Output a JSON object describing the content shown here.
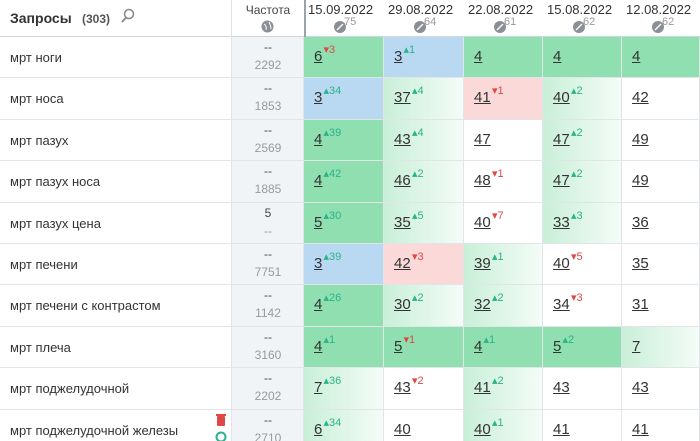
{
  "header": {
    "queries_label": "Запросы",
    "queries_count": "(303)",
    "frequency_label": "Частота",
    "dates": [
      {
        "date": "15.09.2022",
        "score": "75"
      },
      {
        "date": "29.08.2022",
        "score": "64"
      },
      {
        "date": "22.08.2022",
        "score": "61"
      },
      {
        "date": "15.08.2022",
        "score": "62"
      },
      {
        "date": "12.08.2022",
        "score": "62"
      }
    ]
  },
  "rows": [
    {
      "query": "мрт ноги",
      "freq": "--",
      "freq_total": "2292",
      "cells": [
        {
          "pos": "6",
          "change": "▾3"
        },
        {
          "pos": "3",
          "change": "▴1"
        },
        {
          "pos": "4"
        },
        {
          "pos": "4"
        },
        {
          "pos": "4"
        }
      ]
    },
    {
      "query": "мрт носа",
      "freq": "--",
      "freq_total": "1853",
      "cells": [
        {
          "pos": "3",
          "change": "▴34"
        },
        {
          "pos": "37",
          "change": "▴4"
        },
        {
          "pos": "41",
          "change": "▾1"
        },
        {
          "pos": "40",
          "change": "▴2"
        },
        {
          "pos": "42"
        }
      ]
    },
    {
      "query": "мрт пазух",
      "freq": "--",
      "freq_total": "2569",
      "cells": [
        {
          "pos": "4",
          "change": "▴39"
        },
        {
          "pos": "43",
          "change": "▴4"
        },
        {
          "pos": "47"
        },
        {
          "pos": "47",
          "change": "▴2"
        },
        {
          "pos": "49"
        }
      ]
    },
    {
      "query": "мрт пазух носа",
      "freq": "--",
      "freq_total": "1885",
      "cells": [
        {
          "pos": "4",
          "change": "▴42"
        },
        {
          "pos": "46",
          "change": "▴2"
        },
        {
          "pos": "48",
          "change": "▾1"
        },
        {
          "pos": "47",
          "change": "▴2"
        },
        {
          "pos": "49"
        }
      ]
    },
    {
      "query": "мрт пазух цена",
      "freq": "5",
      "freq_total": "--",
      "cells": [
        {
          "pos": "5",
          "change": "▴30"
        },
        {
          "pos": "35",
          "change": "▴5"
        },
        {
          "pos": "40",
          "change": "▾7"
        },
        {
          "pos": "33",
          "change": "▴3"
        },
        {
          "pos": "36"
        }
      ]
    },
    {
      "query": "мрт печени",
      "freq": "--",
      "freq_total": "7751",
      "cells": [
        {
          "pos": "3",
          "change": "▴39"
        },
        {
          "pos": "42",
          "change": "▾3"
        },
        {
          "pos": "39",
          "change": "▴1"
        },
        {
          "pos": "40",
          "change": "▾5"
        },
        {
          "pos": "35"
        }
      ]
    },
    {
      "query": "мрт печени с контрастом",
      "freq": "--",
      "freq_total": "1142",
      "cells": [
        {
          "pos": "4",
          "change": "▴26"
        },
        {
          "pos": "30",
          "change": "▴2"
        },
        {
          "pos": "32",
          "change": "▴2"
        },
        {
          "pos": "34",
          "change": "▾3"
        },
        {
          "pos": "31"
        }
      ]
    },
    {
      "query": "мрт плеча",
      "freq": "--",
      "freq_total": "3160",
      "cells": [
        {
          "pos": "4",
          "change": "▴1"
        },
        {
          "pos": "5",
          "change": "▾1"
        },
        {
          "pos": "4",
          "change": "▴1"
        },
        {
          "pos": "5",
          "change": "▴2"
        },
        {
          "pos": "7"
        }
      ]
    },
    {
      "query": "мрт поджелудочной",
      "freq": "--",
      "freq_total": "2202",
      "cells": [
        {
          "pos": "7",
          "change": "▴36"
        },
        {
          "pos": "43",
          "change": "▾2"
        },
        {
          "pos": "41",
          "change": "▴2"
        },
        {
          "pos": "43"
        },
        {
          "pos": "43"
        }
      ]
    },
    {
      "query": "мрт поджелудочной железы",
      "freq": "--",
      "freq_total": "2710",
      "cells": [
        {
          "pos": "6",
          "change": "▴34"
        },
        {
          "pos": "40"
        },
        {
          "pos": "40",
          "change": "▴1"
        },
        {
          "pos": "41"
        },
        {
          "pos": "41"
        }
      ]
    }
  ]
}
